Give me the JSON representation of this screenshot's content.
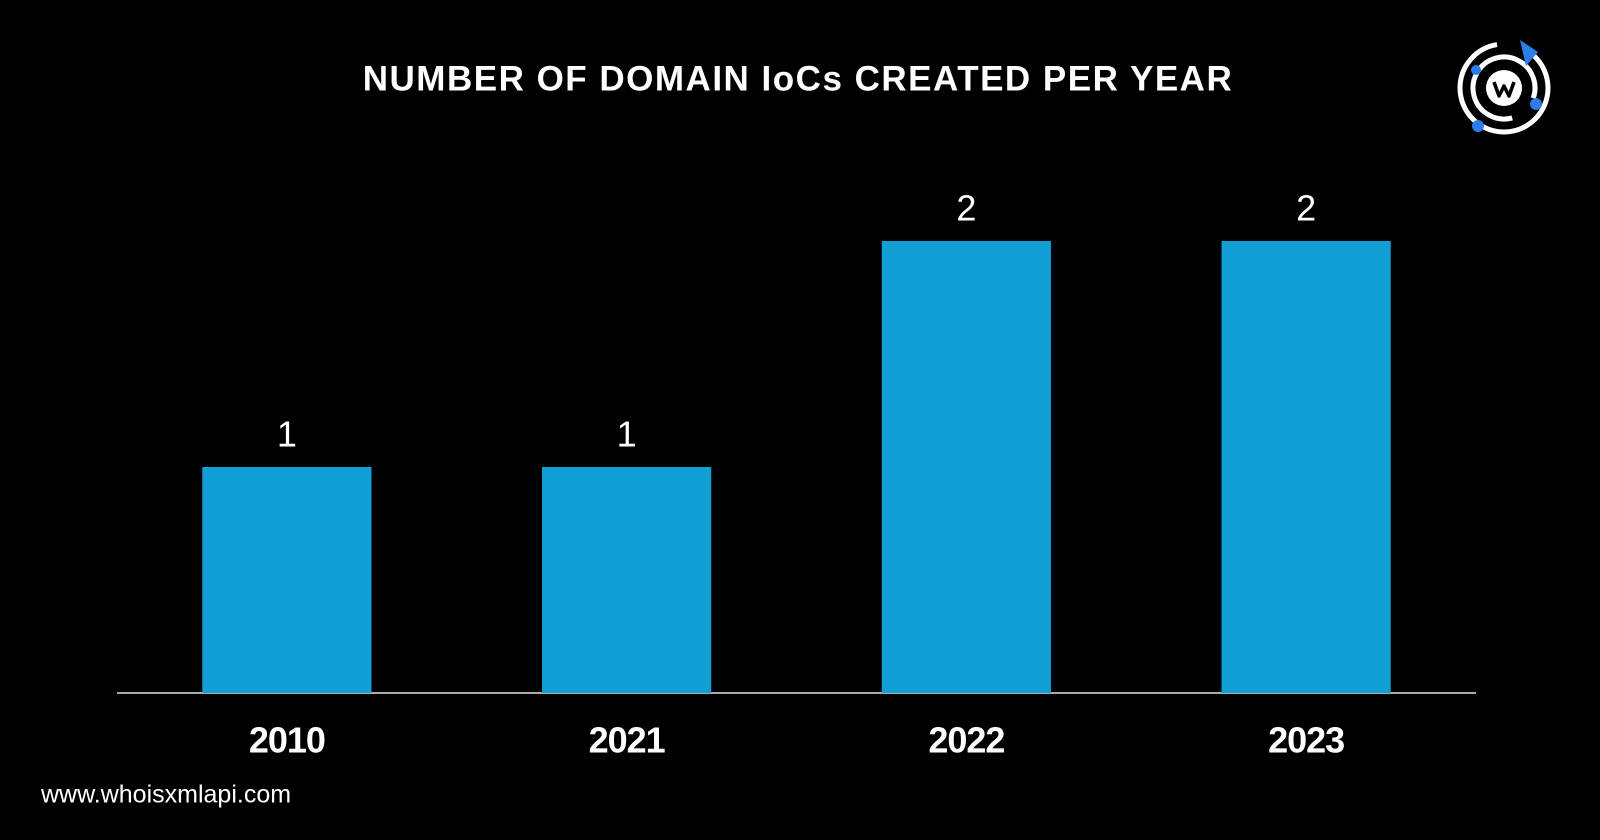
{
  "chart_data": {
    "type": "bar",
    "title": "NUMBER OF DOMAIN IoCs CREATED PER YEAR",
    "categories": [
      "2010",
      "2021",
      "2022",
      "2023"
    ],
    "values": [
      1,
      1,
      2,
      2
    ],
    "color": "#129fd6",
    "ylim": [
      0,
      2
    ],
    "data_labels": true
  },
  "footer": "www.whoisxmlapi.com"
}
